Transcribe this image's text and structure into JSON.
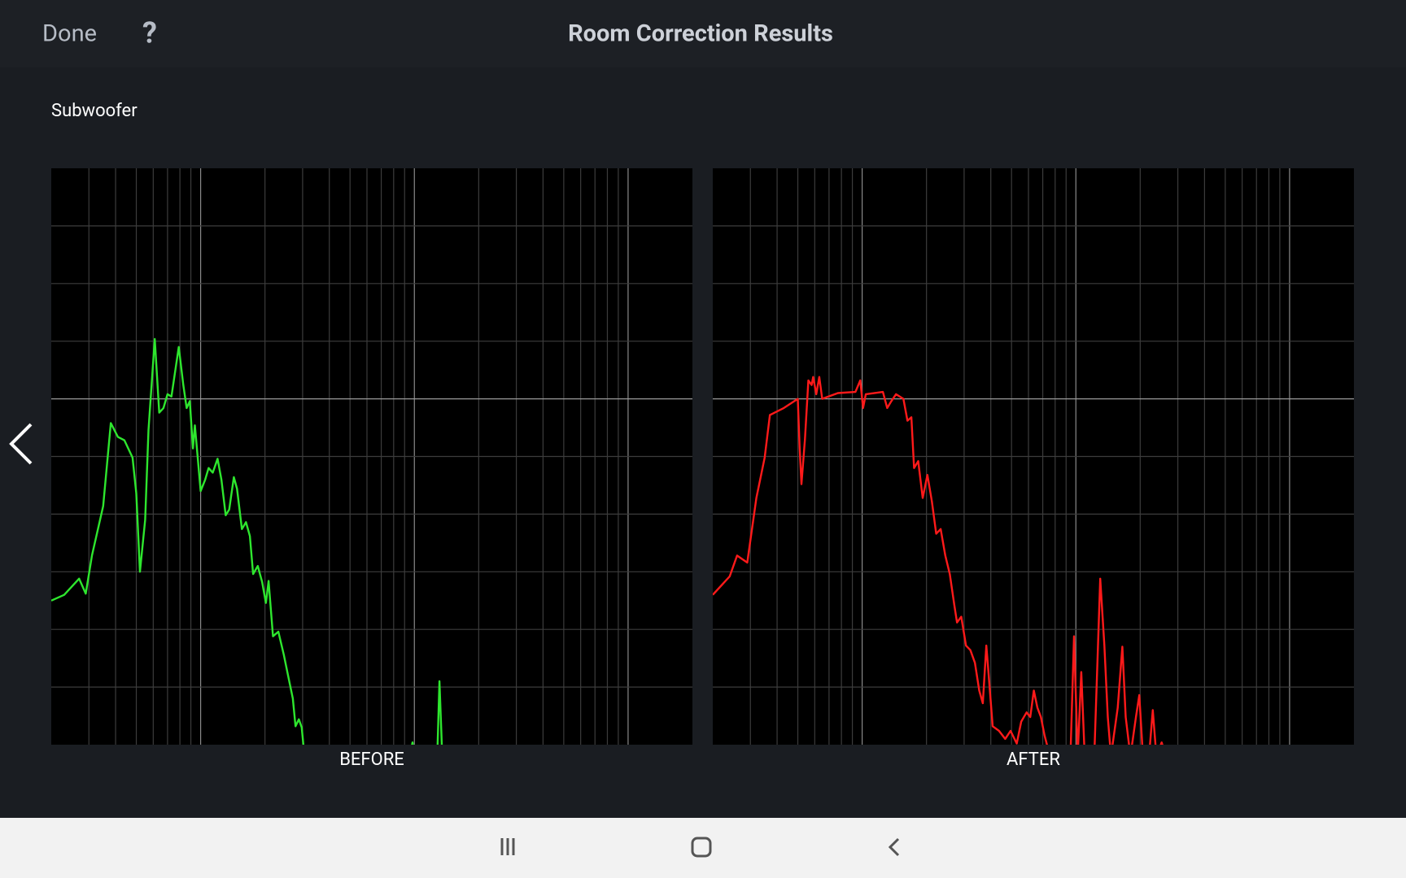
{
  "header": {
    "done": "Done",
    "help": "?",
    "title": "Room Correction Results"
  },
  "section_label": "Subwoofer",
  "chart_data": [
    {
      "type": "line",
      "x_label": "BEFORE",
      "xscale": "log",
      "xlim": [
        2,
        2000
      ],
      "ylim": [
        -30,
        20
      ],
      "xticks": [
        3,
        4,
        5,
        6,
        7,
        8,
        9,
        10,
        20,
        30,
        40,
        50,
        60,
        70,
        80,
        90,
        100,
        200,
        300,
        400,
        500,
        600,
        700,
        800,
        900,
        1000
      ],
      "yticks": [
        -25,
        -20,
        -15,
        -10,
        -5,
        0,
        5,
        10,
        15
      ],
      "grid": true,
      "color": "#2ee62e",
      "x": [
        2.0,
        2.3,
        2.7,
        2.9,
        3.1,
        3.5,
        3.8,
        4.1,
        4.4,
        4.8,
        5.0,
        5.2,
        5.5,
        5.7,
        6.1,
        6.4,
        6.7,
        7.0,
        7.3,
        7.9,
        8.3,
        8.6,
        8.9,
        9.2,
        9.4,
        10,
        10.5,
        10.9,
        11.4,
        12.0,
        12.5,
        13.1,
        13.6,
        14.3,
        14.8,
        15.6,
        16.3,
        17.0,
        17.6,
        18.5,
        19.4,
        20.2,
        20.8,
        21.8,
        23.1,
        24.5,
        25.7,
        27.0,
        27.8,
        28.8,
        29.7,
        30.6,
        95,
        98,
        100,
        128,
        131,
        135
      ],
      "values": [
        -17.5,
        -17.0,
        -15.6,
        -16.9,
        -13.6,
        -9.3,
        -2.1,
        -3.3,
        -3.6,
        -5.1,
        -8.2,
        -15.0,
        -10.5,
        -2.7,
        5.2,
        -1.2,
        -0.8,
        0.4,
        0.2,
        4.5,
        1.2,
        -0.8,
        -0.2,
        -4.3,
        -2.3,
        -8.0,
        -7.0,
        -6.0,
        -6.4,
        -5.2,
        -7.0,
        -10.1,
        -9.6,
        -6.8,
        -7.8,
        -11.3,
        -10.7,
        -11.9,
        -15.2,
        -14.5,
        -15.9,
        -17.7,
        -15.8,
        -20.6,
        -20.2,
        -22.2,
        -24.1,
        -26.0,
        -28.4,
        -27.8,
        -28.5,
        -31,
        -31,
        -29.8,
        -31,
        -31,
        -24.5,
        -31
      ]
    },
    {
      "type": "line",
      "x_label": "AFTER",
      "xscale": "log",
      "xlim": [
        2,
        2000
      ],
      "ylim": [
        -30,
        20
      ],
      "xticks": [
        3,
        4,
        5,
        6,
        7,
        8,
        9,
        10,
        20,
        30,
        40,
        50,
        60,
        70,
        80,
        90,
        100,
        200,
        300,
        400,
        500,
        600,
        700,
        800,
        900,
        1000
      ],
      "yticks": [
        -25,
        -20,
        -15,
        -10,
        -5,
        0,
        5,
        10,
        15
      ],
      "grid": true,
      "color": "#ff1a1a",
      "x": [
        2.0,
        2.4,
        2.6,
        2.9,
        3.2,
        3.5,
        3.7,
        4.3,
        5.0,
        5.1,
        5.2,
        5.4,
        5.6,
        5.8,
        5.9,
        6.1,
        6.3,
        6.5,
        7.7,
        9.3,
        9.8,
        10.1,
        10.4,
        12.5,
        13.1,
        13.7,
        14.4,
        15.6,
        16.3,
        17.0,
        17.5,
        18.3,
        19.2,
        20.2,
        21.2,
        22.2,
        23.3,
        24.5,
        25.7,
        27.0,
        27.8,
        29.1,
        30.6,
        32.1,
        33.7,
        35.3,
        36.7,
        38.1,
        39.3,
        40.8,
        43.7,
        46.7,
        49.5,
        52.9,
        55.5,
        58.8,
        61.2,
        63.6,
        66.1,
        68.6,
        71.4,
        75.6,
        94.3,
        98,
        102,
        106,
        110,
        122,
        130,
        136,
        141,
        146,
        157,
        165,
        171,
        180,
        191,
        198,
        206,
        220,
        229,
        238,
        252,
        264
      ],
      "values": [
        -17.0,
        -15.4,
        -13.6,
        -14.2,
        -8.6,
        -5.1,
        -1.4,
        -0.8,
        0,
        -4.3,
        -7.4,
        -3.5,
        1.6,
        1.2,
        1.9,
        0.4,
        1.9,
        0,
        0.5,
        0.6,
        1.6,
        -0.8,
        0.4,
        0.6,
        -0.8,
        -0.2,
        0.4,
        0,
        -1.9,
        -1.6,
        -6.0,
        -5.4,
        -8.6,
        -6.6,
        -8.9,
        -11.7,
        -11.3,
        -13.6,
        -15.2,
        -17.9,
        -19.4,
        -18.9,
        -21.4,
        -21.8,
        -22.9,
        -25.3,
        -26.4,
        -21.4,
        -24.5,
        -28.4,
        -28.8,
        -29.5,
        -28.8,
        -29.9,
        -28.0,
        -27.2,
        -27.6,
        -25.3,
        -26.8,
        -27.6,
        -29.2,
        -31,
        -31,
        -20.6,
        -31,
        -23.7,
        -31,
        -31,
        -15.6,
        -21.4,
        -27.6,
        -31,
        -26.8,
        -21.5,
        -27.6,
        -31,
        -27.6,
        -25.7,
        -31,
        -31,
        -27.0,
        -31,
        -29.8,
        -31
      ]
    }
  ]
}
